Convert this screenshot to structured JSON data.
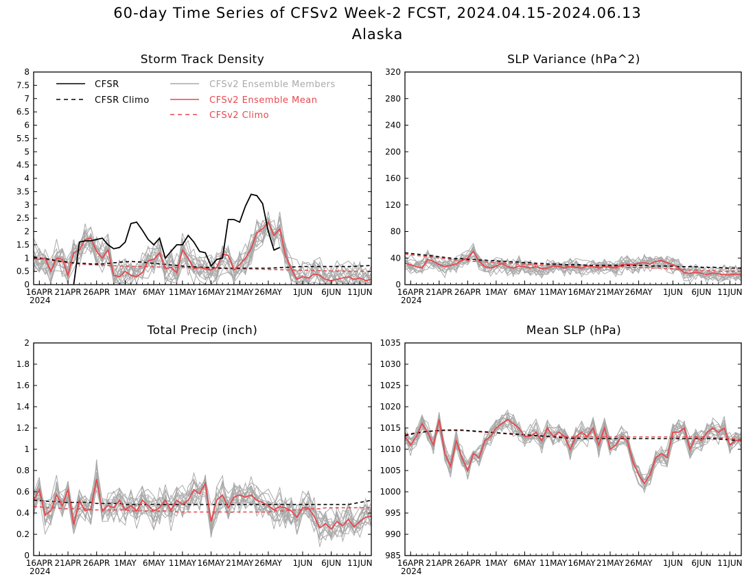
{
  "title": "60-day Time Series of CFSv2 Week-2 FCST, 2024.04.15-2024.06.13",
  "subtitle": "Alaska",
  "colors": {
    "cfsr": "#000000",
    "members": "#a9a9a9",
    "ens_mean": "#e8474c",
    "frame": "#000000"
  },
  "legend": {
    "cfsr": "CFSR",
    "cfsr_climo": "CFSR Climo",
    "members": "CFSv2 Ensemble Members",
    "ens_mean": "CFSv2 Ensemble Mean",
    "cfsv2_climo": "CFSv2 Climo"
  },
  "x_tick_labels": [
    "16APR",
    "21APR",
    "26APR",
    "1MAY",
    "6MAY",
    "11MAY",
    "16MAY",
    "21MAY",
    "26MAY",
    "1JUN",
    "6JUN",
    "11JUN"
  ],
  "x_tick_day_index": [
    1,
    6,
    11,
    16,
    21,
    26,
    31,
    36,
    41,
    47,
    52,
    57
  ],
  "x_year": "2024",
  "chart_data": [
    {
      "type": "line",
      "title": "Storm Track Density",
      "ylim": [
        0,
        8
      ],
      "yticks": [
        "0",
        "0.5",
        "1",
        "1.5",
        "2",
        "2.5",
        "3",
        "3.5",
        "4",
        "4.5",
        "5",
        "5.5",
        "6",
        "6.5",
        "7",
        "7.5",
        "8"
      ],
      "ytick_values": [
        0,
        0.5,
        1,
        1.5,
        2,
        2.5,
        3,
        3.5,
        4,
        4.5,
        5,
        5.5,
        6,
        6.5,
        7,
        7.5,
        8
      ],
      "x_days": 60,
      "ensemble_members_count": 16,
      "member_spread": 0.55,
      "cfsr": [
        null,
        null,
        null,
        null,
        null,
        null,
        null,
        0.0,
        1.6,
        1.65,
        1.65,
        1.7,
        1.75,
        1.5,
        1.35,
        1.4,
        1.6,
        2.3,
        2.35,
        2.05,
        1.7,
        1.5,
        1.75,
        1.0,
        1.25,
        1.5,
        1.5,
        1.85,
        1.6,
        1.25,
        1.2,
        0.7,
        0.95,
        1.0,
        2.45,
        2.45,
        2.35,
        2.95,
        3.4,
        3.35,
        3.05,
        2.0,
        1.3,
        1.4,
        null,
        null,
        null,
        null,
        null,
        null,
        null,
        null,
        null,
        null,
        null,
        null,
        null,
        null,
        null,
        null
      ],
      "ens_mean": [
        1.0,
        0.95,
        1.0,
        0.5,
        1.0,
        0.95,
        0.35,
        1.2,
        1.3,
        1.7,
        1.75,
        1.25,
        1.0,
        1.3,
        0.35,
        0.3,
        0.5,
        0.35,
        0.3,
        0.45,
        0.9,
        0.95,
        1.2,
        0.6,
        0.65,
        0.45,
        1.3,
        1.0,
        0.6,
        0.65,
        0.6,
        0.55,
        0.65,
        1.15,
        1.1,
        0.55,
        0.75,
        1.0,
        1.35,
        1.95,
        2.1,
        2.35,
        1.85,
        2.1,
        1.1,
        0.6,
        0.2,
        0.3,
        0.25,
        0.4,
        0.35,
        0.2,
        0.15,
        0.2,
        0.25,
        0.3,
        0.2,
        0.25,
        0.15,
        0.2
      ],
      "cfsr_climo": [
        1.05,
        1.0,
        0.98,
        0.95,
        0.9,
        0.88,
        0.85,
        0.82,
        0.8,
        0.8,
        0.78,
        0.78,
        0.78,
        0.8,
        0.82,
        0.84,
        0.86,
        0.87,
        0.86,
        0.85,
        0.82,
        0.8,
        0.78,
        0.76,
        0.74,
        0.72,
        0.7,
        0.68,
        0.67,
        0.66,
        0.65,
        0.64,
        0.63,
        0.62,
        0.62,
        0.62,
        0.62,
        0.62,
        0.62,
        0.62,
        0.62,
        0.62,
        0.63,
        0.64,
        0.65,
        0.66,
        0.67,
        0.68,
        0.68,
        0.68,
        0.68,
        0.68,
        0.68,
        0.68,
        0.68,
        0.68,
        0.69,
        0.7,
        0.71,
        0.72
      ],
      "cfsv2_climo": [
        1.0,
        0.98,
        0.95,
        0.92,
        0.88,
        0.85,
        0.82,
        0.8,
        0.78,
        0.76,
        0.75,
        0.74,
        0.73,
        0.72,
        0.71,
        0.7,
        0.7,
        0.69,
        0.68,
        0.68,
        0.67,
        0.67,
        0.66,
        0.66,
        0.65,
        0.65,
        0.64,
        0.64,
        0.63,
        0.63,
        0.62,
        0.62,
        0.61,
        0.61,
        0.6,
        0.6,
        0.6,
        0.59,
        0.59,
        0.58,
        0.58,
        0.57,
        0.57,
        0.56,
        0.56,
        0.55,
        0.55,
        0.54,
        0.54,
        0.53,
        0.53,
        0.52,
        0.52,
        0.51,
        0.51,
        0.5,
        0.5,
        0.5,
        0.5,
        0.5
      ]
    },
    {
      "type": "line",
      "title": "SLP Variance (hPa^2)",
      "ylim": [
        0,
        320
      ],
      "yticks": [
        "0",
        "40",
        "80",
        "120",
        "160",
        "200",
        "240",
        "280",
        "320"
      ],
      "ytick_values": [
        0,
        40,
        80,
        120,
        160,
        200,
        240,
        280,
        320
      ],
      "x_days": 60,
      "ensemble_members_count": 16,
      "member_spread": 12,
      "cfsr": [],
      "ens_mean": [
        32,
        30,
        27,
        25,
        38,
        35,
        30,
        27,
        29,
        31,
        37,
        40,
        50,
        35,
        27,
        25,
        28,
        32,
        27,
        25,
        28,
        27,
        25,
        27,
        24,
        25,
        28,
        27,
        25,
        27,
        26,
        25,
        28,
        27,
        25,
        27,
        26,
        25,
        30,
        31,
        30,
        32,
        33,
        31,
        35,
        36,
        33,
        30,
        25,
        18,
        17,
        19,
        17,
        15,
        18,
        16,
        15,
        15,
        16,
        15
      ],
      "cfsr_climo": [
        48,
        47,
        46,
        45,
        44,
        43,
        42,
        41,
        40,
        39,
        39,
        38,
        38,
        37,
        37,
        36,
        36,
        35,
        35,
        34,
        34,
        33,
        33,
        32,
        32,
        31,
        31,
        31,
        30,
        30,
        30,
        30,
        29,
        29,
        29,
        29,
        29,
        29,
        29,
        29,
        29,
        29,
        29,
        28,
        28,
        28,
        28,
        28,
        27,
        27,
        27,
        27,
        26,
        26,
        26,
        26,
        25,
        25,
        25,
        25
      ],
      "cfsv2_climo": [
        46,
        45,
        44,
        43,
        42,
        41,
        40,
        39,
        38,
        37,
        36,
        36,
        35,
        35,
        34,
        34,
        33,
        33,
        32,
        32,
        31,
        31,
        30,
        30,
        30,
        29,
        29,
        29,
        28,
        28,
        28,
        28,
        27,
        27,
        27,
        27,
        27,
        27,
        27,
        26,
        26,
        26,
        26,
        25,
        25,
        25,
        24,
        24,
        23,
        23,
        22,
        22,
        21,
        21,
        21,
        20,
        20,
        20,
        20,
        20
      ]
    },
    {
      "type": "line",
      "title": "Total Precip (inch)",
      "ylim": [
        0,
        2
      ],
      "yticks": [
        "0",
        "0.2",
        "0.4",
        "0.6",
        "0.8",
        "1",
        "1.2",
        "1.4",
        "1.6",
        "1.8",
        "2"
      ],
      "ytick_values": [
        0,
        0.2,
        0.4,
        0.6,
        0.8,
        1,
        1.2,
        1.4,
        1.6,
        1.8,
        2
      ],
      "x_days": 60,
      "ensemble_members_count": 16,
      "member_spread": 0.15,
      "cfsr": [],
      "ens_mean": [
        0.52,
        0.62,
        0.38,
        0.42,
        0.57,
        0.47,
        0.62,
        0.29,
        0.52,
        0.42,
        0.44,
        0.72,
        0.42,
        0.47,
        0.45,
        0.52,
        0.43,
        0.47,
        0.42,
        0.52,
        0.47,
        0.42,
        0.45,
        0.52,
        0.43,
        0.52,
        0.48,
        0.52,
        0.62,
        0.58,
        0.68,
        0.32,
        0.52,
        0.57,
        0.45,
        0.55,
        0.57,
        0.55,
        0.57,
        0.52,
        0.5,
        0.47,
        0.43,
        0.46,
        0.45,
        0.42,
        0.36,
        0.45,
        0.45,
        0.37,
        0.26,
        0.3,
        0.25,
        0.32,
        0.28,
        0.34,
        0.27,
        0.32,
        0.36,
        0.37
      ],
      "cfsr_climo": [
        0.52,
        0.52,
        0.51,
        0.51,
        0.51,
        0.5,
        0.5,
        0.5,
        0.5,
        0.5,
        0.5,
        0.49,
        0.49,
        0.49,
        0.49,
        0.49,
        0.48,
        0.48,
        0.48,
        0.48,
        0.48,
        0.48,
        0.48,
        0.48,
        0.48,
        0.48,
        0.48,
        0.48,
        0.48,
        0.48,
        0.48,
        0.48,
        0.48,
        0.48,
        0.48,
        0.48,
        0.48,
        0.48,
        0.48,
        0.48,
        0.48,
        0.48,
        0.48,
        0.48,
        0.48,
        0.48,
        0.48,
        0.48,
        0.48,
        0.48,
        0.48,
        0.48,
        0.48,
        0.48,
        0.48,
        0.48,
        0.49,
        0.5,
        0.51,
        0.52
      ],
      "cfsv2_climo": [
        0.46,
        0.46,
        0.45,
        0.45,
        0.45,
        0.44,
        0.44,
        0.44,
        0.44,
        0.44,
        0.43,
        0.43,
        0.43,
        0.43,
        0.43,
        0.43,
        0.43,
        0.42,
        0.42,
        0.42,
        0.42,
        0.42,
        0.42,
        0.42,
        0.42,
        0.41,
        0.41,
        0.41,
        0.41,
        0.41,
        0.41,
        0.41,
        0.41,
        0.41,
        0.41,
        0.41,
        0.41,
        0.41,
        0.41,
        0.41,
        0.41,
        0.41,
        0.42,
        0.42,
        0.42,
        0.43,
        0.43,
        0.43,
        0.44,
        0.44,
        0.44,
        0.45,
        0.45,
        0.45,
        0.45,
        0.45,
        0.45,
        0.45,
        0.45,
        0.45
      ]
    },
    {
      "type": "line",
      "title": "Mean SLP (hPa)",
      "ylim": [
        985,
        1035
      ],
      "yticks": [
        "985",
        "990",
        "995",
        "1000",
        "1005",
        "1010",
        "1015",
        "1020",
        "1025",
        "1030",
        "1035"
      ],
      "ytick_values": [
        985,
        990,
        995,
        1000,
        1005,
        1010,
        1015,
        1020,
        1025,
        1030,
        1035
      ],
      "x_days": 60,
      "ensemble_members_count": 16,
      "member_spread": 3.2,
      "cfsr": [],
      "ens_mean": [
        1013,
        1011,
        1013,
        1016,
        1014,
        1011,
        1017,
        1009,
        1006,
        1012,
        1008,
        1005,
        1009,
        1008,
        1012,
        1013,
        1015,
        1016,
        1017,
        1016,
        1015,
        1013,
        1013,
        1014,
        1012,
        1015,
        1013,
        1014,
        1013,
        1010,
        1013,
        1014,
        1013,
        1015,
        1011,
        1015,
        1010,
        1011,
        1013,
        1012,
        1007,
        1004,
        1002,
        1004,
        1008,
        1009,
        1008,
        1014,
        1014,
        1015,
        1010,
        1013,
        1012,
        1014,
        1015,
        1014,
        1015,
        1011,
        1012,
        1012
      ],
      "cfsr_climo": [
        1013.2,
        1013.5,
        1013.8,
        1014.0,
        1014.2,
        1014.3,
        1014.4,
        1014.5,
        1014.5,
        1014.5,
        1014.5,
        1014.4,
        1014.3,
        1014.2,
        1014.1,
        1014.0,
        1013.9,
        1013.8,
        1013.7,
        1013.6,
        1013.5,
        1013.4,
        1013.3,
        1013.2,
        1013.1,
        1013.0,
        1012.9,
        1012.8,
        1012.7,
        1012.6,
        1012.6,
        1012.5,
        1012.5,
        1012.5,
        1012.5,
        1012.5,
        1012.5,
        1012.5,
        1012.5,
        1012.5,
        1012.5,
        1012.5,
        1012.5,
        1012.5,
        1012.5,
        1012.5,
        1012.5,
        1012.5,
        1012.5,
        1012.5,
        1012.5,
        1012.5,
        1012.5,
        1012.5,
        1012.5,
        1012.4,
        1012.3,
        1012.2,
        1012.1,
        1012.0
      ],
      "cfsv2_climo": [
        1013.5,
        1013.7,
        1013.9,
        1014.1,
        1014.2,
        1014.3,
        1014.4,
        1014.4,
        1014.4,
        1014.4,
        1014.4,
        1014.3,
        1014.2,
        1014.1,
        1014.0,
        1013.9,
        1013.8,
        1013.7,
        1013.6,
        1013.5,
        1013.4,
        1013.3,
        1013.3,
        1013.2,
        1013.2,
        1013.1,
        1013.1,
        1013.0,
        1013.0,
        1013.0,
        1012.9,
        1012.9,
        1012.9,
        1012.9,
        1012.9,
        1012.9,
        1012.9,
        1012.9,
        1012.9,
        1012.9,
        1012.9,
        1012.9,
        1012.9,
        1012.9,
        1012.9,
        1012.9,
        1012.9,
        1012.9,
        1012.9,
        1012.9,
        1012.9,
        1012.9,
        1012.9,
        1012.9,
        1012.8,
        1012.7,
        1012.6,
        1012.5,
        1012.4,
        1012.3
      ]
    }
  ]
}
